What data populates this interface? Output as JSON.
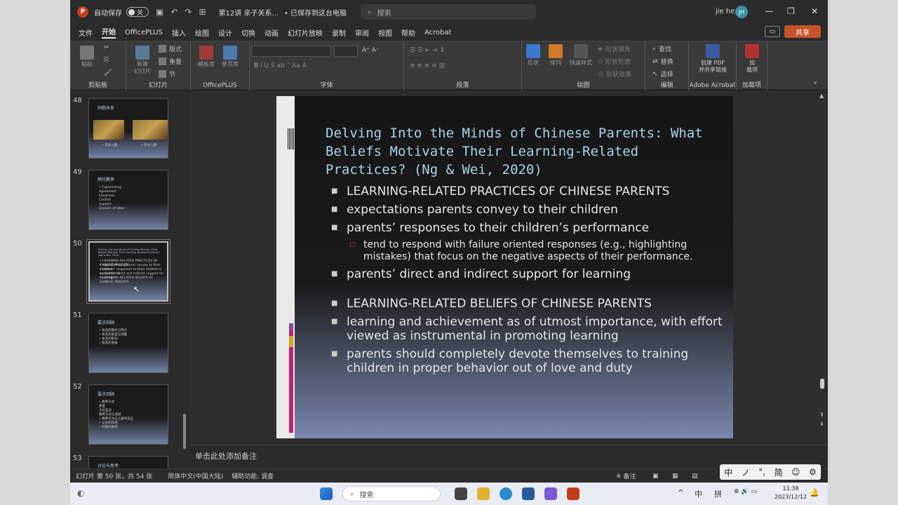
{
  "titlebar": {
    "autosave_label": "自动保存",
    "autosave_state": "关",
    "doc_title": "第12讲 亲子关系...",
    "saved_status": "• 已保存到这台电脑",
    "search_placeholder": "搜索",
    "user_name": "jie he",
    "user_initials": "JH"
  },
  "menu": {
    "tabs": [
      "文件",
      "开始",
      "OfficePLUS",
      "插入",
      "绘图",
      "设计",
      "切换",
      "动画",
      "幻灯片放映",
      "录制",
      "审阅",
      "视图",
      "帮助",
      "Acrobat"
    ],
    "active": "开始",
    "share_label": "共享"
  },
  "ribbon": {
    "groups": {
      "clipboard": "剪贴板",
      "slides": "幻灯片",
      "officeplus": "OfficePLUS",
      "font": "字体",
      "paragraph": "段落",
      "drawing": "绘图",
      "editing": "编辑",
      "acrobat": "Adobe Acrobat",
      "addins": "加载项"
    },
    "paste": "粘贴",
    "new_slide": "新建\n幻灯片",
    "layout": "版式",
    "reset": "重置",
    "section": "节",
    "template": "模板库",
    "single_page": "单页库",
    "shapes": "形状",
    "arrange": "排列",
    "quick_styles": "快速样式",
    "shape_fill": "形状填充",
    "shape_outline": "形状轮廓",
    "shape_effects": "形状效果",
    "find": "查找",
    "replace": "替换",
    "select": "选择",
    "create_pdf": "创建 PDF\n并共享链接",
    "addins_btn": "加\n载项"
  },
  "thumbnails": [
    {
      "num": "48",
      "title": "同胞关系",
      "lines": [
        "• 年幼儿童",
        "• 年长儿童"
      ],
      "type": "photo"
    },
    {
      "num": "49",
      "title": "隔代教养",
      "lines": [
        "• Coparenting",
        "Agreement",
        "Closeness",
        "Conflict",
        "Support",
        "Division of labor"
      ],
      "type": "list"
    },
    {
      "num": "50",
      "title": "Delving Into the Minds of Chinese Parents: What Beliefs Motivate Their Learning-Related Practices? (Ng & Wei, 2020)",
      "lines": [
        "• LEARNING-RELATED PRACTICES OF CHINESE PARENTS",
        "• expectations parents convey to their children",
        "• parents' responses to their children's performance",
        "• parents' direct and indirect support for learning",
        "• LEARNING-RELATED BELIEFS OF CHINESE PARENTS"
      ],
      "type": "list",
      "selected": true
    },
    {
      "num": "51",
      "title": "要点回顾",
      "lines": [
        "• 依恋的概念与特点",
        "• 依恋的类型与测量",
        "• 依恋的影响",
        "• 依恋的发展"
      ],
      "type": "list"
    },
    {
      "num": "52",
      "title": "要点回顾",
      "lines": [
        "• 教养方式",
        "  类型",
        "  文化差异",
        "  教养方式与成就",
        "• 教养行为与儿童的适应",
        "• 父亲的作用",
        "• 同胞的影响"
      ],
      "type": "list"
    },
    {
      "num": "53",
      "title": "讨论与思考",
      "lines": [],
      "type": "list"
    }
  ],
  "slide": {
    "title": "Delving Into the Minds of Chinese Parents: What Beliefs Motivate Their Learning-Related Practices? (Ng & Wei, 2020)",
    "bullets": [
      {
        "level": 1,
        "text": "LEARNING-RELATED PRACTICES OF CHINESE PARENTS"
      },
      {
        "level": 1,
        "text": "expectations parents convey to their children"
      },
      {
        "level": 1,
        "text": "parents’ responses to their children’s performance"
      },
      {
        "level": 2,
        "text": "tend to respond with failure oriented responses (e.g., highlighting mistakes) that focus on the negative aspects of their performance."
      },
      {
        "level": 1,
        "text": "parents’ direct and indirect support for learning"
      },
      {
        "level": 1,
        "text": "LEARNING-RELATED BELIEFS OF CHINESE PARENTS",
        "gap": true
      },
      {
        "level": 1,
        "text": "learning and achievement as of utmost importance, with effort viewed as instrumental in promoting learning"
      },
      {
        "level": 1,
        "text": "parents should completely devote themselves to training children in proper behavior out of love and duty"
      }
    ]
  },
  "notes_placeholder": "单击此处添加备注",
  "status": {
    "slide_count": "幻灯片 第 50 张，共 54 张",
    "language": "简体中文(中国大陆)",
    "accessibility": "辅助功能: 调查",
    "notes_btn": "备注"
  },
  "ime": [
    "中",
    "ノ",
    "°,",
    "简",
    "☺",
    "⚙"
  ],
  "taskbar": {
    "search_placeholder": "搜索",
    "ime_lang": "中",
    "ime_mode": "拼",
    "time": "11:38",
    "date": "2023/12/12"
  }
}
